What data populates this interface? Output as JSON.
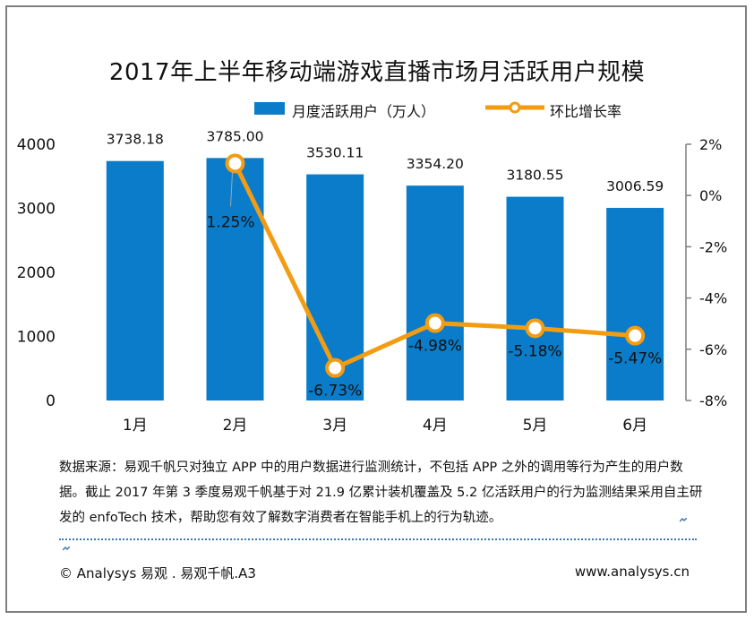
{
  "chart_data": {
    "type": "bar+line",
    "title": "2017年上半年移动端游戏直播市场月活跃用户规模",
    "categories": [
      "1月",
      "2月",
      "3月",
      "4月",
      "5月",
      "6月"
    ],
    "series": [
      {
        "name": "月度活跃用户（万人）",
        "type": "bar",
        "axis": "left",
        "values": [
          3738.18,
          3785.0,
          3530.11,
          3354.2,
          3180.55,
          3006.59
        ],
        "labels": [
          "3738.18",
          "3785.00",
          "3530.11",
          "3354.20",
          "3180.55",
          "3006.59"
        ]
      },
      {
        "name": "环比增长率",
        "type": "line",
        "axis": "right",
        "values": [
          null,
          1.25,
          -6.73,
          -4.98,
          -5.18,
          -5.47
        ],
        "labels": [
          null,
          "1.25%",
          "-6.73%",
          "-4.98%",
          "-5.18%",
          "-5.47%"
        ]
      }
    ],
    "ylim_left": [
      0,
      4000
    ],
    "yticks_left": [
      "0",
      "1000",
      "2000",
      "3000",
      "4000"
    ],
    "ylim_right": [
      -8,
      2
    ],
    "yticks_right": [
      "-8%",
      "-6%",
      "-4%",
      "-2%",
      "0%",
      "2%"
    ],
    "colors": {
      "bar": "#0a7cc9",
      "line": "#f39c12",
      "marker_fill": "#ffffff"
    },
    "grid": false,
    "legend_position": "top"
  },
  "source_note": "数据来源：易观千帆只对独立 APP 中的用户数据进行监测统计，不包括 APP 之外的调用等行为产生的用户数据。截止 2017 年第 3 季度易观千帆基于对 21.9 亿累计装机覆盖及 5.2 亿活跃用户的行为监测结果采用自主研发的 enfoTech 技术，帮助您有效了解数字消费者在智能手机上的行为轨迹。",
  "copyright": "© Analysys 易观 . 易观千帆.A3",
  "website": "www.analysys.cn"
}
